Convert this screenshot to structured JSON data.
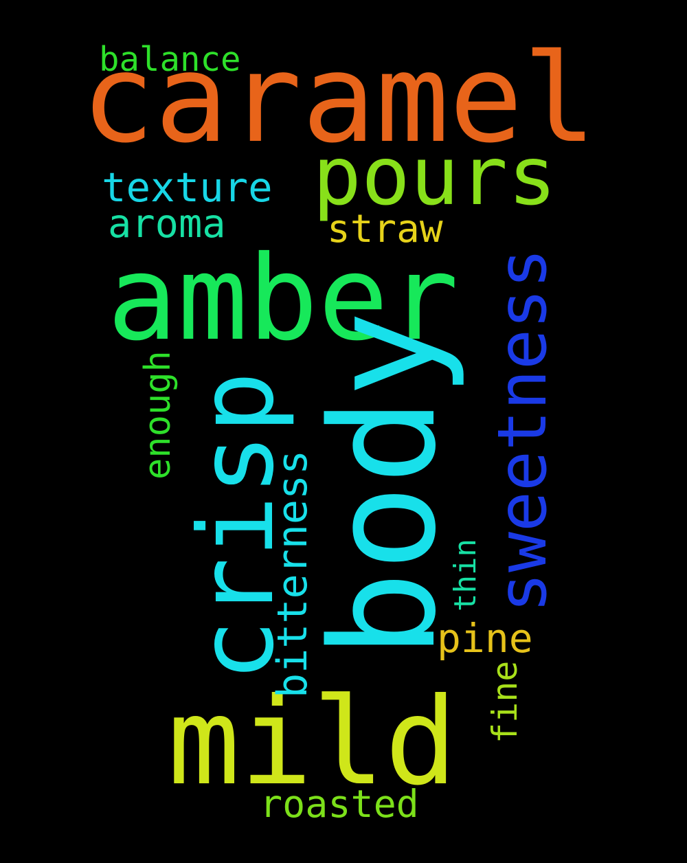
{
  "words": {
    "caramel": {
      "text": "caramel",
      "color": "#e8641a"
    },
    "pours": {
      "text": "pours",
      "color": "#88e01a"
    },
    "balance": {
      "text": "balance",
      "color": "#2ee02a"
    },
    "texture": {
      "text": "texture",
      "color": "#18d6e6"
    },
    "aroma": {
      "text": "aroma",
      "color": "#17e0a4"
    },
    "straw": {
      "text": "straw",
      "color": "#e6d21a"
    },
    "amber": {
      "text": "amber",
      "color": "#17e85a"
    },
    "sweetness": {
      "text": "sweetness",
      "color": "#1a3ae6"
    },
    "body": {
      "text": "body",
      "color": "#18e0ea"
    },
    "crisp": {
      "text": "crisp",
      "color": "#18e0ea"
    },
    "enough": {
      "text": "enough",
      "color": "#2ee02a"
    },
    "bitterness": {
      "text": "bitterness",
      "color": "#18e0ea"
    },
    "thin": {
      "text": "thin",
      "color": "#17e0a4"
    },
    "pine": {
      "text": "pine",
      "color": "#e6c21a"
    },
    "fine": {
      "text": "fine",
      "color": "#a8e01a"
    },
    "mild": {
      "text": "mild",
      "color": "#cfe61a"
    },
    "roasted": {
      "text": "roasted",
      "color": "#7ce01a"
    }
  }
}
